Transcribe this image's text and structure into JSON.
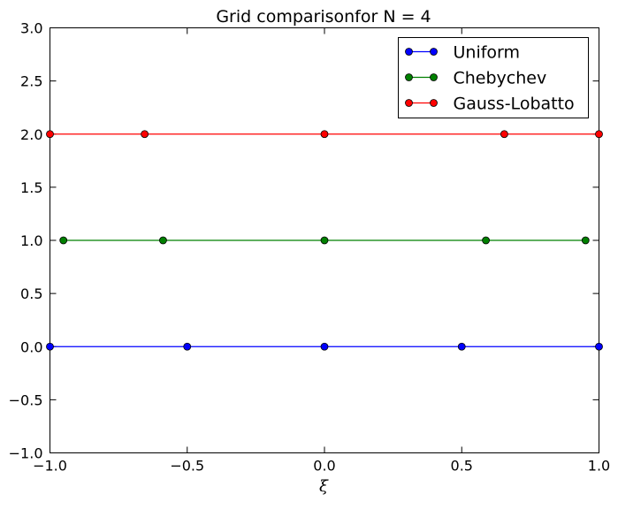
{
  "chart_data": {
    "type": "line",
    "title": "Grid comparisonfor N = 4",
    "xlabel": "ξ",
    "ylabel": "",
    "xlim": [
      -1.0,
      1.0
    ],
    "ylim": [
      -1.0,
      3.0
    ],
    "xticks": [
      -1.0,
      -0.5,
      0.0,
      0.5,
      1.0
    ],
    "xtick_labels": [
      "−1.0",
      "−0.5",
      "0.0",
      "0.5",
      "1.0"
    ],
    "yticks": [
      -1.0,
      -0.5,
      0.0,
      0.5,
      1.0,
      1.5,
      2.0,
      2.5,
      3.0
    ],
    "ytick_labels": [
      "−1.0",
      "−0.5",
      "0.0",
      "0.5",
      "1.0",
      "1.5",
      "2.0",
      "2.5",
      "3.0"
    ],
    "grid": false,
    "legend_position": "top-right",
    "series": [
      {
        "name": "Uniform",
        "color": "#0000ff",
        "marker": "circle",
        "x": [
          -1.0,
          -0.5,
          0.0,
          0.5,
          1.0
        ],
        "y": [
          0.0,
          0.0,
          0.0,
          0.0,
          0.0
        ]
      },
      {
        "name": "Chebychev",
        "color": "#008000",
        "marker": "circle",
        "x": [
          -0.951,
          -0.588,
          0.0,
          0.588,
          0.951
        ],
        "y": [
          1.0,
          1.0,
          1.0,
          1.0,
          1.0
        ]
      },
      {
        "name": "Gauss-Lobatto",
        "color": "#ff0000",
        "marker": "circle",
        "x": [
          -1.0,
          -0.655,
          0.0,
          0.655,
          1.0
        ],
        "y": [
          2.0,
          2.0,
          2.0,
          2.0,
          2.0
        ]
      }
    ]
  }
}
